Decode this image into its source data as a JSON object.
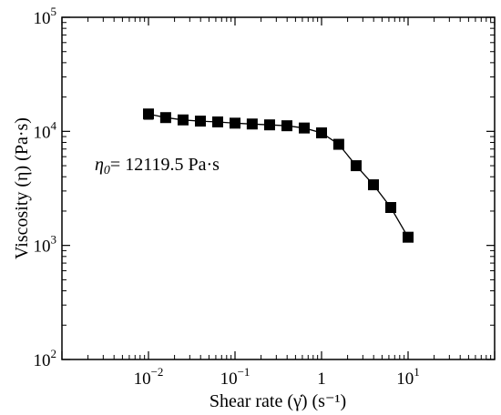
{
  "chart_data": {
    "type": "scatter",
    "x_scale": "log",
    "y_scale": "log",
    "xlim": [
      0.001,
      100
    ],
    "ylim": [
      100,
      100000
    ],
    "xlabel": "Shear rate (γ̇) (s⁻¹)",
    "ylabel": "Viscosity (η) (Pa·s)",
    "grid": false,
    "x_ticks": [
      {
        "value": 0.01,
        "base": "10",
        "exp": "−2"
      },
      {
        "value": 0.1,
        "base": "10",
        "exp": "−1"
      },
      {
        "value": 1,
        "base": "1",
        "exp": ""
      },
      {
        "value": 10,
        "base": "10",
        "exp": "1"
      }
    ],
    "y_ticks": [
      {
        "value": 100,
        "base": "10",
        "exp": "2"
      },
      {
        "value": 1000,
        "base": "10",
        "exp": "3"
      },
      {
        "value": 10000,
        "base": "10",
        "exp": "4"
      },
      {
        "value": 100000,
        "base": "10",
        "exp": "5"
      }
    ],
    "annotation": {
      "symbol": "η",
      "subscript": "0",
      "text": "= 12119.5 Pa·s"
    },
    "series": [
      {
        "marker": "square",
        "color": "#000000",
        "x": [
          0.01,
          0.0158,
          0.0251,
          0.0398,
          0.0631,
          0.1,
          0.158,
          0.251,
          0.398,
          0.631,
          1.0,
          1.58,
          2.51,
          3.98,
          6.31,
          10.0
        ],
        "y": [
          14200,
          13200,
          12600,
          12300,
          12100,
          11800,
          11600,
          11400,
          11200,
          10700,
          9700,
          7700,
          5000,
          3400,
          2150,
          1180
        ],
        "yerr_low": [
          12800
        ],
        "yerr_high": [
          15600
        ]
      }
    ]
  }
}
